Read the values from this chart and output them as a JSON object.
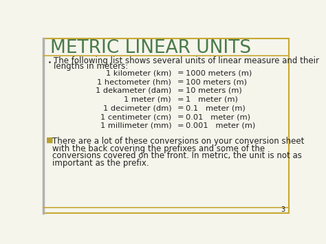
{
  "title": "METRIC LINEAR UNITS",
  "title_color": "#4a7a4a",
  "background_color": "#f5f5ec",
  "border_color_gold": "#c8a832",
  "border_color_left": "#b0b0b0",
  "bullet1_text_line1": "The following list shows several units of linear measure and their",
  "bullet1_text_line2": "lengths in meters:",
  "conversions_left": [
    "1 kilometer (km)",
    "1 hectometer (hm)",
    "1 dekameter (dam)",
    "1 meter (m)",
    "1 decimeter (dm)",
    "1 centimeter (cm)",
    "1 millimeter (mm)"
  ],
  "conversions_mid": [
    "=",
    "=",
    "=",
    "=",
    "=",
    "=",
    "="
  ],
  "conversions_right": [
    "1000 meters (m)",
    "100 meters (m)",
    "10 meters (m)",
    "1   meter (m)",
    "0.1   meter (m)",
    "0.01   meter (m)",
    "0.001   meter (m)"
  ],
  "bullet2_lines": [
    "There are a lot of these conversions on your conversion sheet",
    "with the back covering the prefixes and some of the",
    "conversions covered on the front. In metric, the unit is not as",
    "important as the prefix."
  ],
  "text_color": "#222222",
  "page_number": "3",
  "font_size_title": 19,
  "font_size_body": 8.5,
  "font_size_conv": 8.2
}
